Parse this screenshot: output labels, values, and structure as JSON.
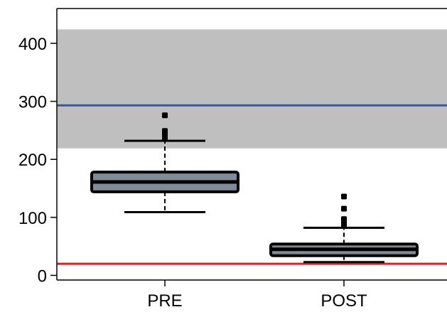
{
  "chart_data": {
    "type": "box",
    "title": "",
    "xlabel": "",
    "ylabel": "",
    "ylim": [
      -8,
      460
    ],
    "yticks": [
      0,
      100,
      200,
      300,
      400
    ],
    "categories": [
      "PRE",
      "POST"
    ],
    "boxes": [
      {
        "category": "PRE",
        "whisker_low": 109,
        "q1": 144,
        "median": 161,
        "q3": 178,
        "whisker_high": 232,
        "outliers": [
          236,
          241,
          245,
          249,
          276
        ]
      },
      {
        "category": "POST",
        "whisker_low": 23,
        "q1": 34,
        "median": 45,
        "q3": 54,
        "whisker_high": 82,
        "outliers": [
          88,
          93,
          97,
          115,
          136
        ]
      }
    ],
    "reference_band": {
      "from": 219,
      "to": 424,
      "color": "#bfbfbf"
    },
    "reference_lines": [
      {
        "value": 293,
        "color": "#3c55a6"
      },
      {
        "value": 20,
        "color": "#e02020"
      }
    ],
    "colors": {
      "box_fill": "#7f8c97",
      "box_edge": "#000000"
    },
    "grid": false,
    "legend": "none"
  }
}
